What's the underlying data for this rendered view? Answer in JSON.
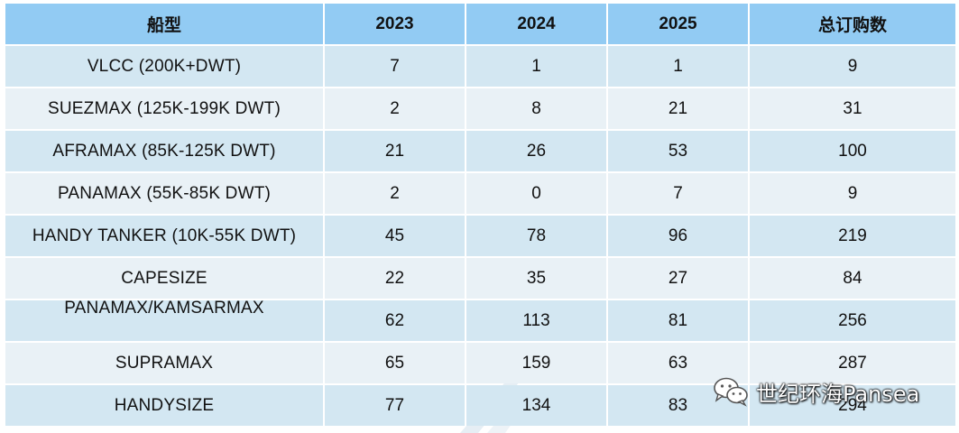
{
  "table": {
    "headers": [
      "船型",
      "2023",
      "2024",
      "2025",
      "总订购数"
    ],
    "rows": [
      [
        "VLCC (200K+DWT)",
        "7",
        "1",
        "1",
        "9"
      ],
      [
        "SUEZMAX (125K-199K DWT)",
        "2",
        "8",
        "21",
        "31"
      ],
      [
        "AFRAMAX (85K-125K DWT)",
        "21",
        "26",
        "53",
        "100"
      ],
      [
        "PANAMAX (55K-85K DWT)",
        "2",
        "0",
        "7",
        "9"
      ],
      [
        "HANDY TANKER (10K-55K DWT)",
        "45",
        "78",
        "96",
        "219"
      ],
      [
        "CAPESIZE",
        "22",
        "35",
        "27",
        "84"
      ],
      [
        "PANAMAX/KAMSARMAX",
        "62",
        "113",
        "81",
        "256"
      ],
      [
        "SUPRAMAX",
        "65",
        "159",
        "63",
        "287"
      ],
      [
        "HANDYSIZE",
        "77",
        "134",
        "83",
        "294"
      ]
    ]
  },
  "watermark": {
    "text": "世纪环海Pansea",
    "icon": "wechat-icon"
  },
  "colors": {
    "header_bg": "#92cbf3",
    "row_odd_bg": "#d3e7f2",
    "row_even_bg": "#e9f1f6"
  }
}
